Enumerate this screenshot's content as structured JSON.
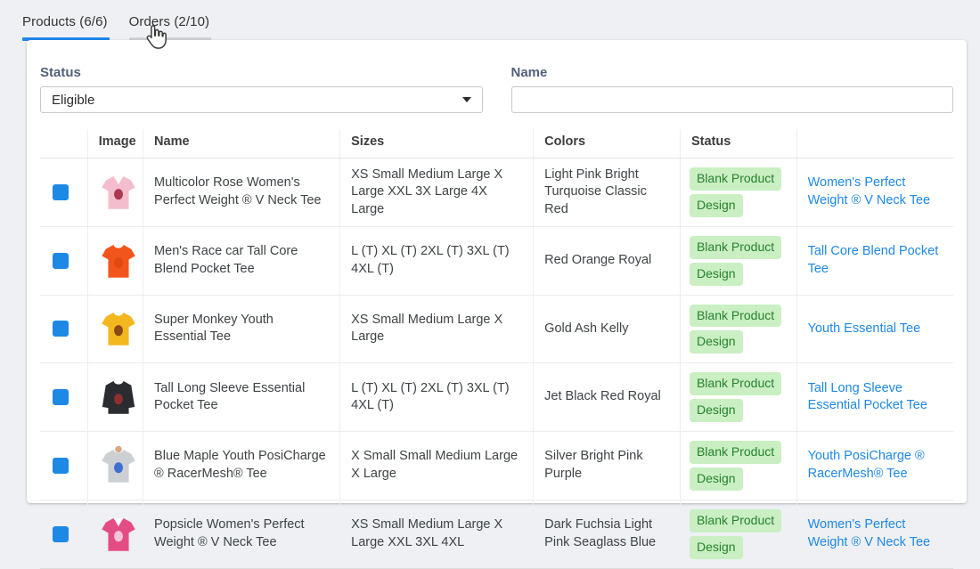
{
  "tabs": [
    {
      "label": "Products (6/6)",
      "active": true
    },
    {
      "label": "Orders (2/10)",
      "active": false
    }
  ],
  "cursor_icon": "hand-pointer-icon",
  "filters": {
    "status_label": "Status",
    "status_value": "Eligible",
    "name_label": "Name",
    "name_value": ""
  },
  "table": {
    "headers": {
      "checkbox": "",
      "image": "Image",
      "name": "Name",
      "sizes": "Sizes",
      "colors": "Colors",
      "status": "Status",
      "link": ""
    },
    "rows": [
      {
        "checked": true,
        "image": {
          "kind": "vneck-tee",
          "shirt": "#f4bdcd",
          "print": "#a83a52"
        },
        "name": "Multicolor Rose Women's Perfect Weight ® V Neck Tee",
        "sizes": "XS Small Medium Large X Large XXL 3X Large 4X Large",
        "colors": "Light Pink Bright Turquoise Classic Red",
        "statuses": [
          "Blank Product",
          "Design"
        ],
        "link": "Women's Perfect Weight ® V Neck Tee"
      },
      {
        "checked": true,
        "image": {
          "kind": "tee",
          "shirt": "#f1551c",
          "print": "#e04a12"
        },
        "name": "Men's Race car Tall Core Blend Pocket Tee",
        "sizes": "L (T) XL (T) 2XL (T) 3XL (T) 4XL (T)",
        "colors": "Red Orange Royal",
        "statuses": [
          "Blank Product",
          "Design"
        ],
        "link": "Tall Core Blend Pocket Tee"
      },
      {
        "checked": true,
        "image": {
          "kind": "tee",
          "shirt": "#f3b71f",
          "print": "#8a4a16"
        },
        "name": "Super Monkey Youth Essential Tee",
        "sizes": "XS Small Medium Large X Large",
        "colors": "Gold Ash Kelly",
        "statuses": [
          "Blank Product",
          "Design"
        ],
        "link": "Youth Essential Tee"
      },
      {
        "checked": true,
        "image": {
          "kind": "longsleeve",
          "shirt": "#2a2c30",
          "print": "#8d2f2f"
        },
        "name": "Tall Long Sleeve Essential Pocket Tee",
        "sizes": "L (T) XL (T) 2XL (T) 3XL (T) 4XL (T)",
        "colors": "Jet Black Red Royal",
        "statuses": [
          "Blank Product",
          "Design"
        ],
        "link": "Tall Long Sleeve Essential Pocket Tee"
      },
      {
        "checked": true,
        "image": {
          "kind": "model-tee",
          "shirt": "#cdd0d3",
          "print": "#3e6fd2"
        },
        "name": "Blue Maple Youth PosiCharge ® RacerMesh® Tee",
        "sizes": "X Small Small Medium Large X Large",
        "colors": "Silver Bright Pink Purple",
        "statuses": [
          "Blank Product",
          "Design"
        ],
        "link": "Youth PosiCharge ® RacerMesh® Tee"
      },
      {
        "checked": true,
        "image": {
          "kind": "vneck-tee",
          "shirt": "#e44d84",
          "print": "#f6c6d8"
        },
        "name": "Popsicle Women's Perfect Weight ® V Neck Tee",
        "sizes": "XS Small Medium Large X Large XXL 3XL 4XL",
        "colors": "Dark Fuchsia Light Pink Seaglass Blue",
        "statuses": [
          "Blank Product",
          "Design"
        ],
        "link": "Women's Perfect Weight ® V Neck Tee"
      }
    ]
  },
  "colors": {
    "active_tab_underline": "#2186eb",
    "inactive_tab_underline": "#cfd2d6",
    "link_blue": "#1e88e5",
    "checkbox_blue": "#1e88e5",
    "badge_bg": "#c9efc2",
    "badge_text": "#27822e",
    "page_bg": "#eef0f3"
  }
}
